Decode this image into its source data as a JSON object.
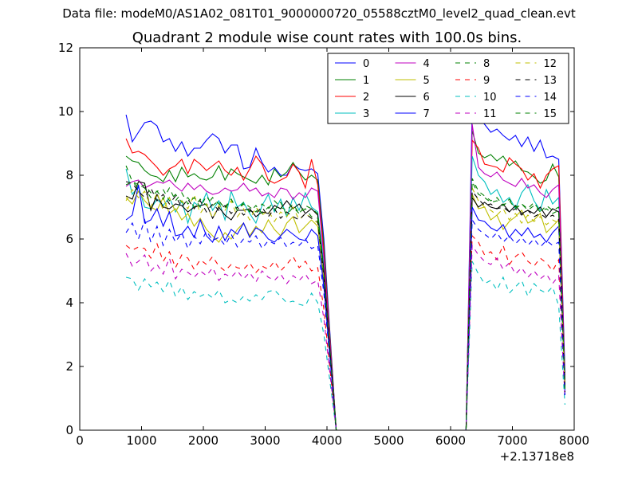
{
  "chart_data": {
    "type": "line",
    "supertitle": "Data file: modeM0/AS1A02_081T01_9000000720_05588cztM0_level2_quad_clean.evt",
    "title": "Quadrant 2 module wise count rates with 100.0s bins.",
    "xlabel": "",
    "ylabel": "",
    "x_offset_label": "+2.13718e8",
    "xlim": [
      0,
      8000
    ],
    "ylim": [
      0,
      12
    ],
    "xticks": [
      "0",
      "1000",
      "2000",
      "3000",
      "4000",
      "5000",
      "6000",
      "7000",
      "8000"
    ],
    "yticks": [
      "0",
      "2",
      "4",
      "6",
      "8",
      "10",
      "12"
    ],
    "legend_position": "top-right",
    "grid": false,
    "gap_interval": [
      4150,
      6250
    ],
    "seg1": {
      "x_start": 750,
      "x_end": 3950,
      "step": 100
    },
    "seg2": {
      "x_start": 6350,
      "x_end": 7850,
      "step": 100
    },
    "series": [
      {
        "name": "0",
        "color": "#0000ff",
        "dash": "solid",
        "seg1": [
          9.9,
          9.05,
          9.35,
          9.65,
          9.7,
          9.55,
          9.05,
          9.15,
          8.75,
          9.05,
          8.6,
          8.85,
          8.85,
          9.1,
          9.3,
          9.15,
          8.7,
          8.95,
          8.95,
          8.2,
          8.25,
          8.85,
          8.4,
          8.1,
          8.25,
          8.0,
          8.0,
          8.35,
          8.2,
          8.15,
          8.2,
          8.05,
          6.0
        ],
        "seg2": [
          10.1,
          9.8,
          9.6,
          9.35,
          9.45,
          9.25,
          9.1,
          9.25,
          8.9,
          9.2,
          8.75,
          9.1,
          8.55,
          8.6,
          8.5,
          1.8
        ]
      },
      {
        "name": "1",
        "color": "#008000",
        "dash": "solid",
        "seg1": [
          8.6,
          8.45,
          8.4,
          8.15,
          8.0,
          7.95,
          7.8,
          8.15,
          7.8,
          8.25,
          7.95,
          8.05,
          7.9,
          7.85,
          7.95,
          8.3,
          7.85,
          8.2,
          8.05,
          7.95,
          7.85,
          7.75,
          8.0,
          7.7,
          8.2,
          7.95,
          8.1,
          8.4,
          8.1,
          7.85,
          8.0,
          7.85,
          5.8
        ],
        "seg2": [
          9.4,
          8.7,
          8.55,
          8.65,
          8.45,
          8.6,
          8.3,
          8.45,
          8.15,
          8.1,
          7.95,
          7.75,
          7.85,
          8.35,
          7.95,
          1.6
        ]
      },
      {
        "name": "2",
        "color": "#ff0000",
        "dash": "solid",
        "seg1": [
          9.15,
          8.7,
          8.75,
          8.65,
          8.45,
          8.25,
          8.0,
          8.2,
          8.3,
          8.5,
          8.05,
          8.5,
          8.35,
          8.15,
          8.3,
          8.45,
          8.15,
          8.0,
          8.25,
          7.85,
          8.2,
          8.6,
          8.35,
          7.85,
          7.75,
          7.85,
          7.95,
          8.35,
          8.1,
          7.6,
          8.5,
          7.7,
          5.6
        ],
        "seg2": [
          9.1,
          8.85,
          8.35,
          8.3,
          8.25,
          8.1,
          8.55,
          8.35,
          8.2,
          7.85,
          8.05,
          7.6,
          8.0,
          8.2,
          8.3,
          1.5
        ]
      },
      {
        "name": "3",
        "color": "#00bfbf",
        "dash": "solid",
        "seg1": [
          8.2,
          7.4,
          7.65,
          7.0,
          6.95,
          7.25,
          7.05,
          7.3,
          6.85,
          7.2,
          6.5,
          7.15,
          7.0,
          7.45,
          6.9,
          7.2,
          6.6,
          7.5,
          7.0,
          7.15,
          6.8,
          6.5,
          7.05,
          7.4,
          6.85,
          7.25,
          6.7,
          7.3,
          6.9,
          7.45,
          7.0,
          6.85,
          5.2
        ],
        "seg2": [
          8.6,
          8.0,
          7.8,
          7.4,
          7.55,
          7.15,
          7.3,
          6.95,
          7.45,
          7.7,
          7.2,
          6.9,
          7.55,
          7.1,
          7.3,
          1.4
        ]
      },
      {
        "name": "4",
        "color": "#bf00bf",
        "dash": "solid",
        "seg1": [
          7.65,
          7.8,
          7.85,
          7.6,
          7.7,
          7.8,
          7.75,
          7.85,
          7.65,
          7.5,
          7.75,
          7.55,
          7.7,
          7.5,
          7.4,
          7.45,
          7.6,
          7.5,
          7.55,
          7.75,
          7.5,
          7.6,
          7.35,
          7.45,
          7.3,
          7.6,
          7.55,
          7.25,
          7.45,
          7.3,
          7.6,
          7.5,
          5.4
        ],
        "seg2": [
          9.6,
          8.25,
          8.05,
          7.95,
          8.1,
          7.85,
          7.75,
          7.65,
          7.9,
          7.6,
          7.7,
          7.45,
          7.3,
          7.55,
          7.7,
          1.5
        ]
      },
      {
        "name": "5",
        "color": "#bfbf00",
        "dash": "solid",
        "seg1": [
          7.3,
          7.1,
          7.5,
          7.2,
          7.0,
          6.9,
          7.3,
          6.8,
          6.95,
          6.6,
          6.8,
          6.4,
          6.65,
          6.3,
          6.1,
          5.9,
          6.2,
          6.0,
          6.3,
          6.5,
          6.1,
          6.4,
          6.2,
          6.6,
          6.3,
          6.1,
          6.5,
          6.7,
          6.2,
          6.4,
          6.6,
          6.4,
          4.7
        ],
        "seg2": [
          7.4,
          6.95,
          7.0,
          6.6,
          6.75,
          6.3,
          6.55,
          6.7,
          6.9,
          6.5,
          6.6,
          6.8,
          6.2,
          6.4,
          6.6,
          1.3
        ]
      },
      {
        "name": "6",
        "color": "#000000",
        "dash": "solid",
        "seg1": [
          7.35,
          7.25,
          7.8,
          7.75,
          6.9,
          7.4,
          7.0,
          6.95,
          7.1,
          7.05,
          6.85,
          7.0,
          7.05,
          7.1,
          6.65,
          7.0,
          6.75,
          6.6,
          6.9,
          6.9,
          6.95,
          6.7,
          6.85,
          6.8,
          7.05,
          6.95,
          7.2,
          6.95,
          7.1,
          6.8,
          6.95,
          6.75,
          5.0
        ],
        "seg2": [
          7.3,
          7.0,
          7.15,
          7.0,
          6.95,
          7.1,
          6.85,
          7.05,
          6.8,
          6.9,
          6.8,
          7.0,
          6.7,
          6.95,
          6.85,
          1.4
        ]
      },
      {
        "name": "7",
        "color": "#0000ff",
        "dash": "solid",
        "seg1": [
          6.6,
          6.75,
          7.7,
          6.5,
          6.6,
          6.95,
          6.4,
          6.85,
          6.1,
          6.15,
          6.4,
          6.05,
          6.6,
          6.1,
          5.9,
          6.4,
          5.95,
          6.3,
          6.15,
          6.5,
          6.05,
          6.35,
          6.25,
          6.0,
          5.9,
          6.1,
          6.3,
          6.15,
          6.0,
          5.95,
          6.3,
          6.1,
          4.5
        ],
        "seg2": [
          7.0,
          6.6,
          6.55,
          6.35,
          6.25,
          6.45,
          6.05,
          6.3,
          6.1,
          6.35,
          6.05,
          6.15,
          5.9,
          6.2,
          6.4,
          1.2
        ]
      },
      {
        "name": "8",
        "color": "#008000",
        "dash": "dash",
        "seg1": [
          8.3,
          7.8,
          7.7,
          7.6,
          7.3,
          7.5,
          7.55,
          7.2,
          7.4,
          7.15,
          7.3,
          7.0,
          7.25,
          7.05,
          7.3,
          7.1,
          7.0,
          7.25,
          6.9,
          7.15,
          7.0,
          6.85,
          7.1,
          6.95,
          7.2,
          7.0,
          6.9,
          7.1,
          6.8,
          7.05,
          6.95,
          6.8,
          4.9
        ],
        "seg2": [
          7.8,
          7.4,
          7.3,
          7.15,
          7.2,
          7.05,
          7.25,
          7.0,
          7.1,
          6.95,
          7.15,
          6.85,
          7.05,
          6.9,
          7.0,
          1.3
        ]
      },
      {
        "name": "9",
        "color": "#ff0000",
        "dash": "dash",
        "seg1": [
          5.8,
          5.65,
          5.75,
          5.7,
          5.4,
          5.85,
          5.3,
          5.6,
          5.1,
          5.5,
          5.4,
          5.05,
          5.35,
          5.2,
          5.45,
          5.15,
          5.0,
          5.2,
          5.1,
          5.05,
          5.25,
          4.95,
          5.15,
          5.05,
          5.3,
          5.0,
          5.2,
          5.45,
          5.1,
          5.3,
          5.0,
          5.1,
          3.8
        ],
        "seg2": [
          6.1,
          5.9,
          5.5,
          5.6,
          5.35,
          5.8,
          5.2,
          5.45,
          5.6,
          5.3,
          5.15,
          5.4,
          5.25,
          5.0,
          5.35,
          1.1
        ]
      },
      {
        "name": "10",
        "color": "#00bfbf",
        "dash": "dash",
        "seg1": [
          4.8,
          4.75,
          4.4,
          4.75,
          4.5,
          4.65,
          4.35,
          4.7,
          4.2,
          4.5,
          4.1,
          4.35,
          4.2,
          4.3,
          4.15,
          4.4,
          4.0,
          4.1,
          4.0,
          4.2,
          4.05,
          4.25,
          4.1,
          4.35,
          4.4,
          4.2,
          4.0,
          4.05,
          3.95,
          3.9,
          4.3,
          4.0,
          3.0
        ],
        "seg2": [
          5.3,
          4.9,
          4.6,
          4.7,
          4.4,
          4.8,
          4.3,
          4.5,
          4.7,
          4.2,
          4.6,
          4.4,
          4.3,
          4.5,
          3.9,
          0.8
        ]
      },
      {
        "name": "11",
        "color": "#bf00bf",
        "dash": "dash",
        "seg1": [
          5.55,
          5.15,
          5.3,
          5.5,
          5.0,
          5.2,
          4.9,
          5.4,
          4.75,
          5.05,
          4.95,
          4.8,
          5.0,
          4.85,
          5.1,
          4.7,
          4.9,
          4.8,
          5.0,
          4.75,
          4.95,
          4.65,
          5.0,
          4.8,
          4.7,
          4.9,
          4.6,
          4.85,
          4.7,
          4.9,
          4.6,
          4.7,
          3.5
        ],
        "seg2": [
          5.8,
          5.5,
          5.3,
          5.2,
          5.4,
          5.05,
          5.25,
          4.9,
          5.1,
          4.8,
          5.0,
          4.75,
          4.9,
          4.6,
          4.85,
          1.0
        ]
      },
      {
        "name": "12",
        "color": "#bfbf00",
        "dash": "dash",
        "seg1": [
          7.2,
          7.55,
          7.3,
          7.5,
          7.0,
          7.45,
          6.9,
          7.3,
          6.85,
          7.2,
          6.95,
          7.4,
          6.8,
          7.1,
          6.65,
          7.05,
          6.9,
          7.2,
          6.7,
          6.95,
          6.6,
          7.0,
          6.75,
          6.9,
          6.55,
          6.85,
          6.7,
          7.0,
          6.6,
          6.8,
          6.65,
          6.5,
          4.8
        ],
        "seg2": [
          7.6,
          7.2,
          7.0,
          6.9,
          6.75,
          6.95,
          6.6,
          6.8,
          6.5,
          6.75,
          6.55,
          6.7,
          6.45,
          6.6,
          6.5,
          1.3
        ]
      },
      {
        "name": "13",
        "color": "#000000",
        "dash": "dash",
        "seg1": [
          7.8,
          7.75,
          7.5,
          7.3,
          7.6,
          7.2,
          7.4,
          7.1,
          7.35,
          7.0,
          7.25,
          6.95,
          7.2,
          6.85,
          7.1,
          6.9,
          7.05,
          6.8,
          7.0,
          6.75,
          6.9,
          6.8,
          7.0,
          6.7,
          6.95,
          6.65,
          6.85,
          6.7,
          6.6,
          6.8,
          6.65,
          6.55,
          4.8
        ],
        "seg2": [
          7.5,
          7.25,
          7.05,
          7.1,
          6.95,
          7.0,
          6.85,
          6.95,
          6.75,
          6.9,
          6.7,
          6.8,
          6.65,
          6.75,
          6.6,
          1.2
        ]
      },
      {
        "name": "14",
        "color": "#0000ff",
        "dash": "dash",
        "seg1": [
          6.2,
          6.5,
          6.0,
          6.6,
          5.9,
          6.4,
          5.8,
          6.3,
          5.9,
          6.2,
          5.7,
          6.1,
          5.85,
          6.25,
          5.95,
          6.05,
          5.8,
          6.15,
          5.75,
          6.0,
          5.9,
          6.1,
          5.7,
          5.95,
          5.85,
          6.05,
          5.75,
          5.9,
          5.8,
          6.0,
          5.7,
          5.8,
          4.3
        ],
        "seg2": [
          6.6,
          6.3,
          6.15,
          6.0,
          6.2,
          5.9,
          6.1,
          5.85,
          6.05,
          5.8,
          6.0,
          5.75,
          5.95,
          5.8,
          5.9,
          1.1
        ]
      },
      {
        "name": "15",
        "color": "#008000",
        "dash": "dash",
        "seg1": [
          7.7,
          7.8,
          7.6,
          7.7,
          7.45,
          7.5,
          7.25,
          7.6,
          7.2,
          7.45,
          7.1,
          7.3,
          7.0,
          7.35,
          7.05,
          7.2,
          6.95,
          7.25,
          6.9,
          7.1,
          6.85,
          7.05,
          6.8,
          7.0,
          6.9,
          7.15,
          6.75,
          7.0,
          6.8,
          6.95,
          6.7,
          6.65,
          4.9
        ],
        "seg2": [
          7.9,
          7.5,
          7.35,
          7.2,
          7.3,
          7.05,
          7.2,
          6.95,
          7.1,
          6.9,
          7.05,
          6.85,
          6.95,
          6.8,
          6.9,
          1.3
        ]
      }
    ]
  }
}
